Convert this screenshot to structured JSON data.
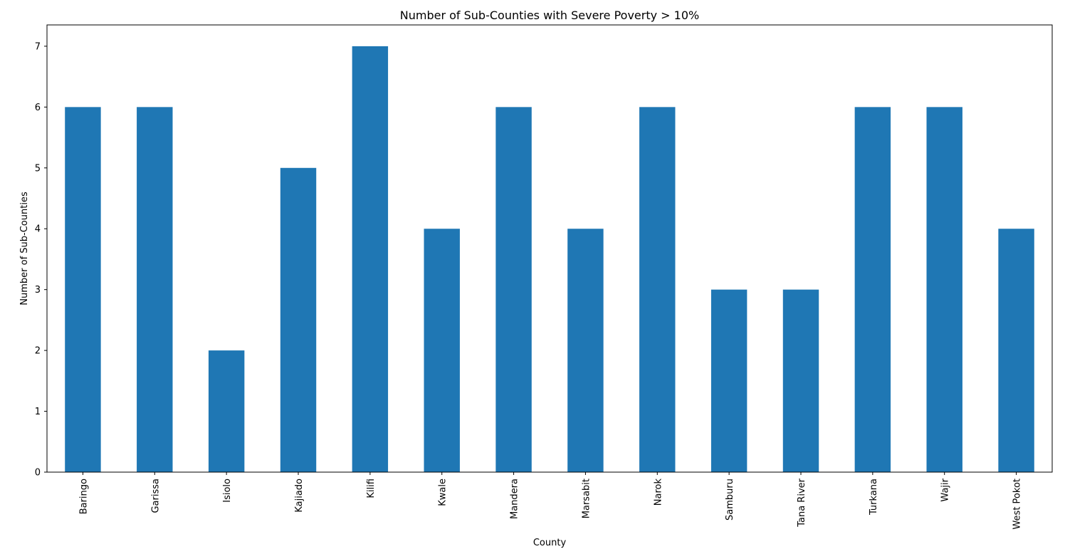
{
  "chart_data": {
    "type": "bar",
    "title": "Number of Sub-Counties with Severe Poverty > 10%",
    "xlabel": "County",
    "ylabel": "Number of Sub-Counties",
    "categories": [
      "Baringo",
      "Garissa",
      "Isiolo",
      "Kajiado",
      "Kilifi",
      "Kwale",
      "Mandera",
      "Marsabit",
      "Narok",
      "Samburu",
      "Tana River",
      "Turkana",
      "Wajir",
      "West Pokot"
    ],
    "values": [
      6,
      6,
      2,
      5,
      7,
      4,
      6,
      4,
      6,
      3,
      3,
      6,
      6,
      4
    ],
    "ylim": [
      0,
      7.35
    ],
    "yticks": [
      0,
      1,
      2,
      3,
      4,
      5,
      6,
      7
    ],
    "bar_color": "#1f77b4",
    "grid": false,
    "legend": "none"
  }
}
